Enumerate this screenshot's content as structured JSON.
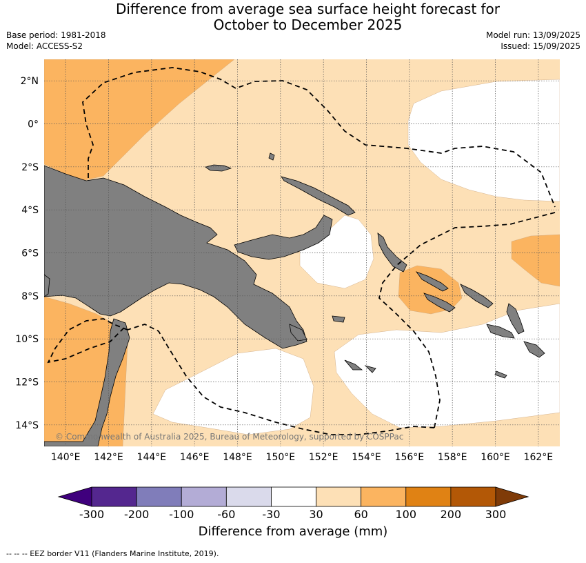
{
  "title_line1": "Difference from average sea surface height forecast for",
  "title_line2": "October to December 2025",
  "meta_left": [
    "Base period: 1981-2018",
    "Model: ACCESS-S2"
  ],
  "meta_right": [
    "Model run: 13/09/2025",
    "Issued: 15/09/2025"
  ],
  "copyright": "© Commonwealth of Australia 2025, Bureau of Meteorology, supported by COSPPac",
  "footer_note": "--  --  -- EEZ border V11 (Flanders Marine Institute, 2019).",
  "colorbar": {
    "label": "Difference from average (mm)",
    "ticks": [
      "-300",
      "-200",
      "-100",
      "-60",
      "-30",
      "30",
      "60",
      "100",
      "200",
      "300"
    ],
    "colors": [
      "#3f007d",
      "#54278f",
      "#807dba",
      "#b3acd6",
      "#dadaeb",
      "#ffffff",
      "#fde0b6",
      "#fbb460",
      "#e08214",
      "#b35806",
      "#7f3b08"
    ]
  },
  "map": {
    "lon_labels": [
      "140°E",
      "142°E",
      "144°E",
      "146°E",
      "148°E",
      "150°E",
      "152°E",
      "154°E",
      "156°E",
      "158°E",
      "160°E",
      "162°E"
    ],
    "lat_labels": [
      "2°N",
      "0°",
      "2°S",
      "4°S",
      "6°S",
      "8°S",
      "10°S",
      "12°S",
      "14°S"
    ],
    "lon_values": [
      140,
      142,
      144,
      146,
      148,
      150,
      152,
      154,
      156,
      158,
      160,
      162
    ],
    "lat_values": [
      2,
      0,
      -2,
      -4,
      -6,
      -8,
      -10,
      -12,
      -14
    ],
    "extent": {
      "lon_min": 139,
      "lon_max": 163,
      "lat_min": -15,
      "lat_max": 3
    },
    "colors": {
      "land": "#808080",
      "band_30_60": "#fde0b6",
      "band_60_100": "#fbb460",
      "band_neutral": "#ffffff"
    }
  }
}
